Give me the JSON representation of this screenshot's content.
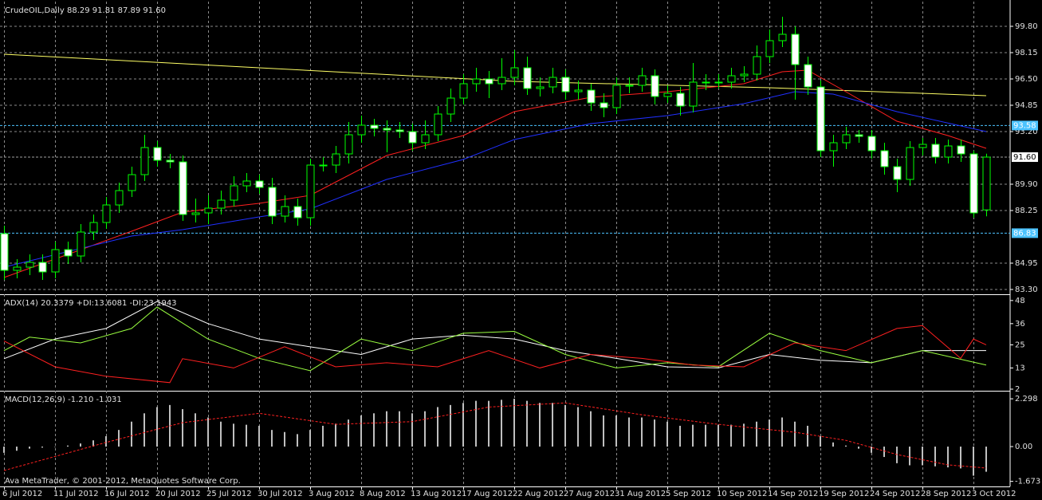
{
  "chart_data": [
    {
      "type": "candlestick",
      "title": "CrudeOIL,Daily  88.29 91.81 87.89 91.60",
      "categories": [
        "6 Jul 2012",
        null,
        null,
        null,
        "11 Jul 2012",
        null,
        null,
        null,
        "16 Jul 2012",
        null,
        null,
        null,
        "20 Jul 2012",
        null,
        null,
        null,
        "25 Jul 2012",
        null,
        null,
        null,
        "30 Jul 2012",
        null,
        null,
        null,
        "3 Aug 2012",
        null,
        null,
        null,
        "8 Aug 2012",
        null,
        null,
        null,
        "13 Aug 2012",
        null,
        null,
        null,
        "17 Aug 2012",
        null,
        null,
        null,
        "22 Aug 2012",
        null,
        null,
        null,
        "27 Aug 2012",
        null,
        null,
        null,
        "31 Aug 2012",
        null,
        null,
        null,
        "5 Sep 2012",
        null,
        null,
        null,
        "10 Sep 2012",
        null,
        null,
        null,
        "14 Sep 2012",
        null,
        null,
        null,
        "19 Sep 2012",
        null,
        null,
        null,
        "24 Sep 2012",
        null,
        null,
        null,
        "28 Sep 2012",
        null,
        null,
        null,
        "3 Oct 2012",
        null
      ],
      "open": [
        86.8,
        84.5,
        84.7,
        85.0,
        84.4,
        85.8,
        85.4,
        86.9,
        87.5,
        88.6,
        89.5,
        90.5,
        92.2,
        91.4,
        91.3,
        88.0,
        88.1,
        88.4,
        88.9,
        89.8,
        90.1,
        89.7,
        87.9,
        88.5,
        87.8,
        91.1,
        91.1,
        91.8,
        93.0,
        93.6,
        93.4,
        93.3,
        93.2,
        92.5,
        93.0,
        94.3,
        95.3,
        96.2,
        96.5,
        96.2,
        96.6,
        97.2,
        95.9,
        96.0,
        96.6,
        95.7,
        95.8,
        95.0,
        94.7,
        96.1,
        96.1,
        96.7,
        95.4,
        95.6,
        94.8,
        96.3,
        96.3,
        96.3,
        96.7,
        96.8,
        97.9,
        98.9,
        99.3,
        97.4,
        96.0,
        92.0,
        92.5,
        93.0,
        92.9,
        92.0,
        91.0,
        90.2,
        92.2,
        92.4,
        91.6,
        92.3,
        91.8,
        88.29
      ],
      "high": [
        87.3,
        85.2,
        85.5,
        85.5,
        86.3,
        86.3,
        87.4,
        88.0,
        89.1,
        90.0,
        91.0,
        93.0,
        92.6,
        91.8,
        91.7,
        89.0,
        89.2,
        89.5,
        90.4,
        90.6,
        90.5,
        90.3,
        89.2,
        89.0,
        91.5,
        91.6,
        92.3,
        93.8,
        94.2,
        94.0,
        93.9,
        93.8,
        93.7,
        93.9,
        94.8,
        95.9,
        96.8,
        97.2,
        97.0,
        97.8,
        98.3,
        97.9,
        96.6,
        97.2,
        97.1,
        96.4,
        96.2,
        95.6,
        96.6,
        96.6,
        97.2,
        97.1,
        96.1,
        96.0,
        97.5,
        96.8,
        96.8,
        97.2,
        97.3,
        98.6,
        99.6,
        100.4,
        99.8,
        97.9,
        96.4,
        93.0,
        93.5,
        93.3,
        93.3,
        92.5,
        91.5,
        92.6,
        92.8,
        92.8,
        92.7,
        92.7,
        92.0,
        91.81
      ],
      "low": [
        83.9,
        84.0,
        84.2,
        83.9,
        84.0,
        84.9,
        85.0,
        86.4,
        87.1,
        88.1,
        89.1,
        90.1,
        91.0,
        90.9,
        87.6,
        87.5,
        87.4,
        88.0,
        88.5,
        89.4,
        89.3,
        87.4,
        87.5,
        87.3,
        87.3,
        90.7,
        90.6,
        91.2,
        92.5,
        92.9,
        91.9,
        92.8,
        92.0,
        92.1,
        92.6,
        93.8,
        94.9,
        95.7,
        95.3,
        95.8,
        96.1,
        95.5,
        95.4,
        95.6,
        95.2,
        95.2,
        94.5,
        94.1,
        94.3,
        95.6,
        95.7,
        94.9,
        95.0,
        94.2,
        94.4,
        95.8,
        95.9,
        95.9,
        96.3,
        96.4,
        97.5,
        98.5,
        95.2,
        95.5,
        91.6,
        91.0,
        92.1,
        92.5,
        91.5,
        90.5,
        89.4,
        89.8,
        91.7,
        91.2,
        91.2,
        91.3,
        87.8,
        87.89
      ],
      "close": [
        84.5,
        84.7,
        85.0,
        84.4,
        85.8,
        85.4,
        86.9,
        87.5,
        88.6,
        89.5,
        90.5,
        92.2,
        91.4,
        91.3,
        88.0,
        88.1,
        88.4,
        88.9,
        89.8,
        90.1,
        89.7,
        87.9,
        88.5,
        87.8,
        91.1,
        91.1,
        91.8,
        93.0,
        93.6,
        93.4,
        93.3,
        93.2,
        92.5,
        93.0,
        94.3,
        95.3,
        96.2,
        96.5,
        96.2,
        96.6,
        97.2,
        95.9,
        96.0,
        96.6,
        95.7,
        95.8,
        95.0,
        94.7,
        96.1,
        96.1,
        96.7,
        95.4,
        95.6,
        94.8,
        96.3,
        96.3,
        96.3,
        96.7,
        96.8,
        97.9,
        98.9,
        99.3,
        97.4,
        96.0,
        92.0,
        92.5,
        93.0,
        92.9,
        92.0,
        91.0,
        90.2,
        92.2,
        92.4,
        91.6,
        92.3,
        91.8,
        88.1,
        91.6
      ],
      "up_color": "#000000",
      "down_color": "#ffffff",
      "wick_color": "#00ff00",
      "series": [
        {
          "color": "#ffff66",
          "x": [
            0,
            20,
            40,
            60,
            77
          ],
          "values": [
            98.05,
            97.2,
            96.35,
            95.95,
            95.45
          ]
        },
        {
          "color": "#ff2020",
          "x": [
            0,
            10,
            14,
            20,
            24,
            30,
            36,
            40,
            46,
            52,
            58,
            61,
            63,
            66,
            70,
            74,
            77
          ],
          "values": [
            84.05,
            86.95,
            88.15,
            88.7,
            89.2,
            91.7,
            92.95,
            94.45,
            95.35,
            95.7,
            96.2,
            96.95,
            97.05,
            95.7,
            93.85,
            92.95,
            92.15
          ]
        },
        {
          "color": "#2030ff",
          "x": [
            0,
            10,
            14,
            20,
            24,
            30,
            36,
            40,
            46,
            52,
            58,
            62,
            65,
            70,
            77
          ],
          "values": [
            84.7,
            86.65,
            87.05,
            87.85,
            88.35,
            90.2,
            91.45,
            92.7,
            93.7,
            94.2,
            94.95,
            95.7,
            95.55,
            94.45,
            93.2
          ]
        }
      ],
      "price_lines": [
        {
          "value": 93.58,
          "label": "93.58",
          "color": "#4cc3ff",
          "text_color": "#ffffff"
        },
        {
          "value": 91.6,
          "label": "91.60",
          "color": "#ffffff",
          "text_color": "#000000"
        },
        {
          "value": 86.83,
          "label": "86.83",
          "color": "#4cc3ff",
          "text_color": "#ffffff"
        }
      ],
      "ylim": [
        83.05,
        101.2
      ],
      "yticks": [
        {
          "value": 99.8,
          "label": "99.80"
        },
        98.15,
        {
          "value": 96.5,
          "label": "96.50"
        },
        94.85,
        {
          "value": 93.2,
          "label": "93.20"
        },
        {
          "value": 89.9,
          "label": "89.90"
        },
        88.25,
        84.95,
        {
          "value": 83.3,
          "label": "83.30"
        }
      ],
      "grid": true
    },
    {
      "type": "line",
      "title": "ADX(14) 20.3379 +DI:13.6081 -DI:23.1943",
      "series": [
        {
          "color": "#ffffff",
          "x": [
            0,
            4,
            8,
            12,
            16,
            20,
            24,
            28,
            32,
            36,
            40,
            44,
            48,
            52,
            56,
            60,
            64,
            68,
            72,
            77
          ],
          "values": [
            17.8,
            28,
            33.5,
            47.5,
            36,
            28,
            24,
            20,
            28,
            30,
            28,
            22,
            18,
            13.6,
            13,
            20,
            17,
            15.7,
            22,
            22
          ]
        },
        {
          "color": "#9aff40",
          "x": [
            0,
            2,
            6,
            10,
            12,
            16,
            20,
            24,
            28,
            32,
            36,
            40,
            44,
            48,
            52,
            56,
            60,
            64,
            68,
            72,
            77
          ],
          "values": [
            22,
            29,
            26,
            33.5,
            44.6,
            28,
            18,
            11.6,
            28,
            22,
            31,
            32,
            20,
            13,
            15.7,
            13.6,
            31,
            22,
            15.7,
            22,
            14.5
          ]
        },
        {
          "color": "#ff2020",
          "x": [
            0,
            4,
            8,
            13,
            14,
            18,
            22,
            26,
            30,
            34,
            38,
            42,
            46,
            50,
            54,
            58,
            62,
            66,
            70,
            72,
            75,
            76,
            77
          ],
          "values": [
            27,
            13.6,
            8.7,
            5.4,
            17.8,
            13,
            24,
            13.6,
            15.7,
            13.6,
            22,
            13,
            20,
            18,
            14.5,
            13.6,
            26,
            22,
            33.5,
            35,
            18,
            28,
            25
          ]
        }
      ],
      "ylim": [
        2,
        50
      ],
      "yticks": [
        48,
        36,
        25,
        13,
        2
      ],
      "grid": false
    },
    {
      "type": "macd",
      "title": "MACD(12,26,9) -1.210 -1.031",
      "values": [
        -0.3,
        -0.2,
        -0.1,
        -0.05,
        0.0,
        0.05,
        0.15,
        0.3,
        0.5,
        0.8,
        1.2,
        1.6,
        1.9,
        2.0,
        1.8,
        1.6,
        1.4,
        1.2,
        1.1,
        1.05,
        1.0,
        0.8,
        0.7,
        0.6,
        0.8,
        1.0,
        1.1,
        1.3,
        1.5,
        1.6,
        1.7,
        1.7,
        1.6,
        1.7,
        1.9,
        2.0,
        2.1,
        2.2,
        2.2,
        2.25,
        2.3,
        2.2,
        2.1,
        2.1,
        2.0,
        1.9,
        1.7,
        1.5,
        1.5,
        1.4,
        1.4,
        1.3,
        1.2,
        1.0,
        1.05,
        1.05,
        1.05,
        1.05,
        1.1,
        1.2,
        1.3,
        1.4,
        1.2,
        1.0,
        0.5,
        0.2,
        0.05,
        -0.1,
        -0.3,
        -0.5,
        -0.8,
        -0.9,
        -0.9,
        -0.95,
        -1.0,
        -1.05,
        -1.4,
        -1.21
      ],
      "color": "#c0c0c0",
      "series": [
        {
          "color": "#ff2020",
          "x": [
            0,
            8,
            14,
            20,
            26,
            32,
            38,
            44,
            50,
            56,
            62,
            66,
            70,
            74,
            77
          ],
          "values": [
            -1.15,
            0.2,
            1.15,
            1.6,
            1.07,
            1.2,
            1.9,
            2.1,
            1.53,
            1.07,
            0.69,
            0.3,
            -0.38,
            -0.88,
            -1.031
          ]
        }
      ],
      "ylim": [
        -1.84,
        2.57
      ],
      "yticks": [
        2.298,
        {
          "value": 0,
          "label": "0.00"
        },
        -1.673
      ],
      "grid": false
    }
  ],
  "footer": "Ava MetaTrader, © 2001-2012, MetaQuotes Software Corp."
}
